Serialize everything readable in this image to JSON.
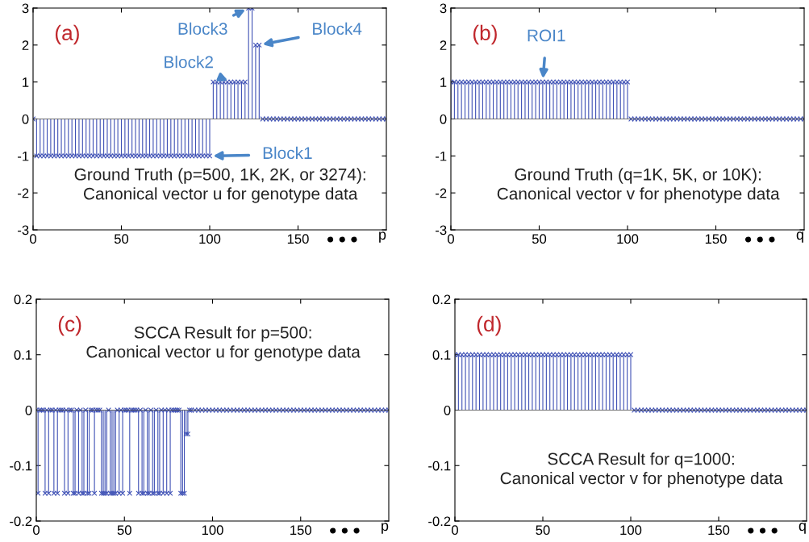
{
  "chart_data": [
    {
      "type": "lollipop",
      "marker": "cross",
      "xlim": [
        0,
        200
      ],
      "ylim": [
        -3,
        3
      ],
      "yticks": [
        -3,
        -2,
        -1,
        0,
        1,
        2,
        3
      ],
      "xticks": [
        0,
        50,
        100,
        150
      ],
      "xlabel": "p",
      "series": [
        {
          "color": "#3f51b5",
          "x": [
            0,
            2,
            4,
            6,
            8,
            10,
            12,
            14,
            16,
            18,
            20,
            22,
            24,
            26,
            28,
            30,
            32,
            34,
            36,
            38,
            40,
            42,
            44,
            46,
            48,
            50,
            52,
            54,
            56,
            58,
            60,
            62,
            64,
            66,
            68,
            70,
            72,
            74,
            76,
            78,
            80,
            82,
            84,
            86,
            88,
            90,
            92,
            94,
            96,
            98,
            100,
            102,
            104,
            106,
            108,
            110,
            112,
            114,
            116,
            118,
            120,
            122,
            124,
            126,
            128,
            130,
            132,
            134,
            136,
            138,
            140,
            142,
            144,
            146,
            148,
            150,
            152,
            154,
            156,
            158,
            160,
            162,
            164,
            166,
            168,
            170,
            172,
            174,
            176,
            178,
            180,
            182,
            184,
            186,
            188,
            190,
            192,
            194,
            196,
            198,
            200
          ],
          "values": [
            0,
            -1,
            -1,
            -1,
            -1,
            -1,
            -1,
            -1,
            -1,
            -1,
            -1,
            -1,
            -1,
            -1,
            -1,
            -1,
            -1,
            -1,
            -1,
            -1,
            -1,
            -1,
            -1,
            -1,
            -1,
            -1,
            -1,
            -1,
            -1,
            -1,
            -1,
            -1,
            -1,
            -1,
            -1,
            -1,
            -1,
            -1,
            -1,
            -1,
            -1,
            -1,
            -1,
            -1,
            -1,
            -1,
            -1,
            -1,
            -1,
            -1,
            -1,
            1,
            1,
            1,
            1,
            1,
            1,
            1,
            1,
            1,
            1,
            3,
            3,
            2,
            2,
            0,
            0,
            0,
            0,
            0,
            0,
            0,
            0,
            0,
            0,
            0,
            0,
            0,
            0,
            0,
            0,
            0,
            0,
            0,
            0,
            0,
            0,
            0,
            0,
            0,
            0,
            0,
            0,
            0,
            0,
            0,
            0,
            0,
            0,
            0,
            0
          ]
        }
      ],
      "annotations": [
        "(a)",
        "Ground Truth (p=500, 1K, 2K, or 3274):\nCanonical vector u for genotype data",
        "● ● ●",
        {
          "text": "Block1",
          "x": 100,
          "y": -1
        },
        {
          "text": "Block2",
          "x": 112,
          "y": 1
        },
        {
          "text": "Block3",
          "x": 122,
          "y": 3
        },
        {
          "text": "Block4",
          "x": 128,
          "y": 2
        }
      ]
    },
    {
      "type": "lollipop",
      "marker": "cross",
      "xlim": [
        0,
        200
      ],
      "ylim": [
        -3,
        3
      ],
      "yticks": [
        -3,
        -2,
        -1,
        0,
        1,
        2,
        3
      ],
      "xticks": [
        0,
        50,
        100,
        150
      ],
      "xlabel": "q",
      "series": [
        {
          "color": "#3f51b5",
          "x": [
            0,
            2,
            4,
            6,
            8,
            10,
            12,
            14,
            16,
            18,
            20,
            22,
            24,
            26,
            28,
            30,
            32,
            34,
            36,
            38,
            40,
            42,
            44,
            46,
            48,
            50,
            52,
            54,
            56,
            58,
            60,
            62,
            64,
            66,
            68,
            70,
            72,
            74,
            76,
            78,
            80,
            82,
            84,
            86,
            88,
            90,
            92,
            94,
            96,
            98,
            100,
            102,
            104,
            106,
            108,
            110,
            112,
            114,
            116,
            118,
            120,
            122,
            124,
            126,
            128,
            130,
            132,
            134,
            136,
            138,
            140,
            142,
            144,
            146,
            148,
            150,
            152,
            154,
            156,
            158,
            160,
            162,
            164,
            166,
            168,
            170,
            172,
            174,
            176,
            178,
            180,
            182,
            184,
            186,
            188,
            190,
            192,
            194,
            196,
            198,
            200
          ],
          "values": [
            1,
            1,
            1,
            1,
            1,
            1,
            1,
            1,
            1,
            1,
            1,
            1,
            1,
            1,
            1,
            1,
            1,
            1,
            1,
            1,
            1,
            1,
            1,
            1,
            1,
            1,
            1,
            1,
            1,
            1,
            1,
            1,
            1,
            1,
            1,
            1,
            1,
            1,
            1,
            1,
            1,
            1,
            1,
            1,
            1,
            1,
            1,
            1,
            1,
            1,
            1,
            0,
            0,
            0,
            0,
            0,
            0,
            0,
            0,
            0,
            0,
            0,
            0,
            0,
            0,
            0,
            0,
            0,
            0,
            0,
            0,
            0,
            0,
            0,
            0,
            0,
            0,
            0,
            0,
            0,
            0,
            0,
            0,
            0,
            0,
            0,
            0,
            0,
            0,
            0,
            0,
            0,
            0,
            0,
            0,
            0,
            0,
            0,
            0,
            0,
            0
          ]
        }
      ],
      "annotations": [
        "(b)",
        "Ground Truth (q=1K, 5K, or 10K):\nCanonical vector v for phenotype data",
        "● ● ●",
        {
          "text": "ROI1",
          "x": 52,
          "y": 1
        }
      ]
    },
    {
      "type": "lollipop",
      "marker": "cross",
      "xlim": [
        0,
        200
      ],
      "ylim": [
        -0.2,
        0.2
      ],
      "yticks": [
        -0.2,
        -0.1,
        0,
        0.1,
        0.2
      ],
      "xticks": [
        0,
        50,
        100,
        150
      ],
      "xlabel": "p",
      "series": [
        {
          "color": "#3f51b5",
          "x": [
            0,
            1,
            2,
            3,
            4,
            5,
            6,
            7,
            8,
            9,
            10,
            11,
            12,
            13,
            14,
            15,
            16,
            17,
            18,
            19,
            20,
            21,
            22,
            23,
            24,
            25,
            26,
            27,
            28,
            29,
            30,
            31,
            32,
            33,
            34,
            35,
            36,
            37,
            38,
            39,
            40,
            41,
            42,
            43,
            44,
            45,
            46,
            47,
            48,
            49,
            50,
            51,
            52,
            53,
            54,
            55,
            56,
            57,
            58,
            59,
            60,
            61,
            62,
            63,
            64,
            65,
            66,
            67,
            68,
            69,
            70,
            71,
            72,
            73,
            74,
            75,
            76,
            77,
            78,
            79,
            80,
            81,
            82,
            83,
            84,
            85,
            86,
            87,
            88,
            90,
            92,
            94,
            96,
            98,
            100,
            102,
            104,
            106,
            108,
            110,
            112,
            114,
            116,
            118,
            120,
            122,
            124,
            126,
            128,
            130,
            132,
            134,
            136,
            138,
            140,
            142,
            144,
            146,
            148,
            150,
            152,
            154,
            156,
            158,
            160,
            162,
            164,
            166,
            168,
            170,
            172,
            174,
            176,
            178,
            180,
            182,
            184,
            186,
            188,
            190,
            192,
            194,
            196,
            198,
            200
          ],
          "values": [
            0,
            -0.15,
            0,
            0,
            0,
            -0.15,
            0,
            -0.15,
            0,
            0,
            -0.15,
            0,
            -0.15,
            0,
            0,
            0,
            -0.15,
            0,
            -0.15,
            0,
            0,
            -0.15,
            -0.15,
            0,
            -0.15,
            0,
            -0.15,
            -0.15,
            0,
            -0.15,
            -0.15,
            0,
            0,
            -0.15,
            0,
            0,
            0,
            -0.15,
            -0.15,
            -0.15,
            -0.15,
            0,
            -0.15,
            -0.15,
            -0.15,
            -0.15,
            0,
            -0.15,
            0,
            -0.15,
            0,
            0,
            0,
            -0.15,
            0,
            0,
            0,
            0,
            -0.15,
            0,
            -0.15,
            -0.15,
            0,
            -0.15,
            -0.15,
            0,
            -0.15,
            -0.15,
            0,
            -0.15,
            -0.15,
            0,
            -0.15,
            0,
            -0.15,
            0,
            -0.15,
            0,
            0,
            0,
            0,
            0,
            -0.15,
            -0.15,
            -0.15,
            -0.043,
            -0.043,
            0,
            0,
            0,
            0,
            0,
            0,
            0,
            0,
            0,
            0,
            0,
            0,
            0,
            0,
            0,
            0,
            0,
            0,
            0,
            0,
            0,
            0,
            0,
            0,
            0,
            0,
            0,
            0,
            0,
            0,
            0,
            0,
            0,
            0,
            0,
            0,
            0,
            0,
            0,
            0,
            0,
            0,
            0,
            0,
            0,
            0,
            0,
            0,
            0,
            0,
            0,
            0,
            0,
            0,
            0,
            0,
            0,
            0
          ]
        }
      ],
      "annotations": [
        "(c)",
        "SCCA Result for p=500:\nCanonical vector u for genotype data",
        "● ● ●"
      ]
    },
    {
      "type": "lollipop",
      "marker": "cross",
      "xlim": [
        0,
        200
      ],
      "ylim": [
        -0.2,
        0.2
      ],
      "yticks": [
        -0.2,
        -0.1,
        0,
        0.1,
        0.2
      ],
      "xticks": [
        0,
        50,
        100,
        150
      ],
      "xlabel": "q",
      "series": [
        {
          "color": "#3f51b5",
          "x": [
            0,
            2,
            4,
            6,
            8,
            10,
            12,
            14,
            16,
            18,
            20,
            22,
            24,
            26,
            28,
            30,
            32,
            34,
            36,
            38,
            40,
            42,
            44,
            46,
            48,
            50,
            52,
            54,
            56,
            58,
            60,
            62,
            64,
            66,
            68,
            70,
            72,
            74,
            76,
            78,
            80,
            82,
            84,
            86,
            88,
            90,
            92,
            94,
            96,
            98,
            100,
            102,
            104,
            106,
            108,
            110,
            112,
            114,
            116,
            118,
            120,
            122,
            124,
            126,
            128,
            130,
            132,
            134,
            136,
            138,
            140,
            142,
            144,
            146,
            148,
            150,
            152,
            154,
            156,
            158,
            160,
            162,
            164,
            166,
            168,
            170,
            172,
            174,
            176,
            178,
            180,
            182,
            184,
            186,
            188,
            190,
            192,
            194,
            196,
            198,
            200
          ],
          "values": [
            0.1,
            0.1,
            0.1,
            0.1,
            0.1,
            0.1,
            0.1,
            0.1,
            0.1,
            0.1,
            0.1,
            0.1,
            0.1,
            0.1,
            0.1,
            0.1,
            0.1,
            0.1,
            0.1,
            0.1,
            0.1,
            0.1,
            0.1,
            0.1,
            0.1,
            0.1,
            0.1,
            0.1,
            0.1,
            0.1,
            0.1,
            0.1,
            0.1,
            0.1,
            0.1,
            0.1,
            0.1,
            0.1,
            0.1,
            0.1,
            0.1,
            0.1,
            0.1,
            0.1,
            0.1,
            0.1,
            0.1,
            0.1,
            0.1,
            0.1,
            0.1,
            0,
            0,
            0,
            0,
            0,
            0,
            0,
            0,
            0,
            0,
            0,
            0,
            0,
            0,
            0,
            0,
            0,
            0,
            0,
            0,
            0,
            0,
            0,
            0,
            0,
            0,
            0,
            0,
            0,
            0,
            0,
            0,
            0,
            0,
            0,
            0,
            0,
            0,
            0,
            0,
            0,
            0,
            0,
            0,
            0,
            0,
            0,
            0,
            0,
            0
          ]
        }
      ],
      "annotations": [
        "(d)",
        "SCCA Result for q=1000:\nCanonical vector v for phenotype data",
        "● ● ●"
      ]
    }
  ]
}
